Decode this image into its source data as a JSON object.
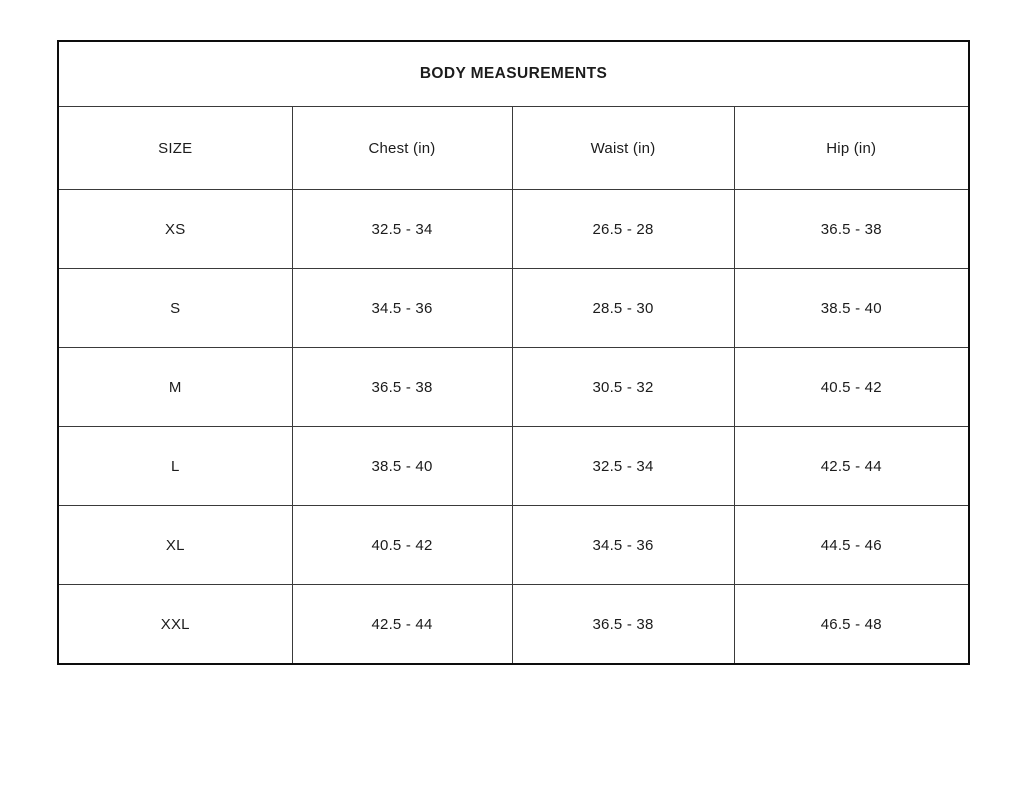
{
  "page": {
    "background_color": "#ffffff",
    "text_color": "#1c1c1c",
    "border_color": "#0d0d0d"
  },
  "table": {
    "title": "BODY MEASUREMENTS",
    "columns": [
      "SIZE",
      "Chest (in)",
      "Waist (in)",
      "Hip (in)"
    ],
    "rows": [
      {
        "size": "XS",
        "chest": "32.5 - 34",
        "waist": "26.5 - 28",
        "hip": "36.5 - 38"
      },
      {
        "size": "S",
        "chest": "34.5 - 36",
        "waist": "28.5 - 30",
        "hip": "38.5 - 40"
      },
      {
        "size": "M",
        "chest": "36.5 - 38",
        "waist": "30.5 - 32",
        "hip": "40.5 - 42"
      },
      {
        "size": "L",
        "chest": "38.5 - 40",
        "waist": "32.5 - 34",
        "hip": "42.5 - 44"
      },
      {
        "size": "XL",
        "chest": "40.5 - 42",
        "waist": "34.5 - 36",
        "hip": "44.5 - 46"
      },
      {
        "size": "XXL",
        "chest": "42.5 - 44",
        "waist": "36.5 - 38",
        "hip": "46.5 - 48"
      }
    ]
  }
}
